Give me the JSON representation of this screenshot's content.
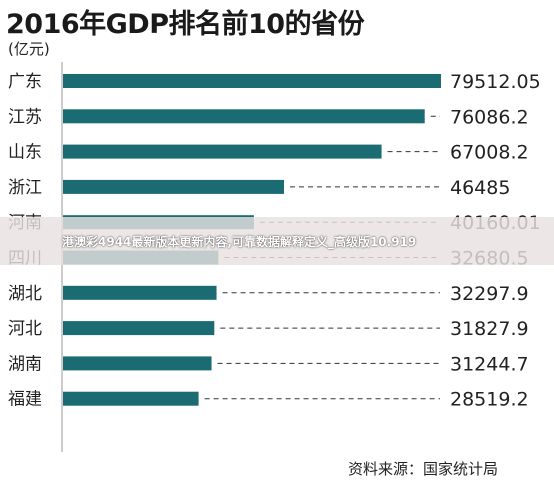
{
  "chart_data": {
    "type": "bar",
    "orientation": "horizontal",
    "title": "2016年GDP排名前10的省份",
    "unit": "(亿元)",
    "source": "资料来源：国家统计局",
    "categories": [
      "广东",
      "江苏",
      "山东",
      "浙江",
      "河南",
      "四川",
      "湖北",
      "河北",
      "湖南",
      "福建"
    ],
    "values": [
      79512.05,
      76086.2,
      67008.2,
      46485,
      40160.01,
      32680.5,
      32297.9,
      31827.9,
      31244.7,
      28519.2
    ],
    "value_labels": [
      "79512.05",
      "76086.2",
      "67008.2",
      "46485",
      "40160.01",
      "32680.5",
      "32297.9",
      "31827.9",
      "31244.7",
      "28519.2"
    ],
    "xlim": [
      0,
      79512.05
    ],
    "grid": false,
    "colors": {
      "bar": "#1b6b72",
      "dash": "#333333",
      "text": "#222222"
    }
  },
  "overlay": {
    "text": "港澳彩4944最新版本更新内容,可靠数据解释定义_高级版10.919"
  }
}
